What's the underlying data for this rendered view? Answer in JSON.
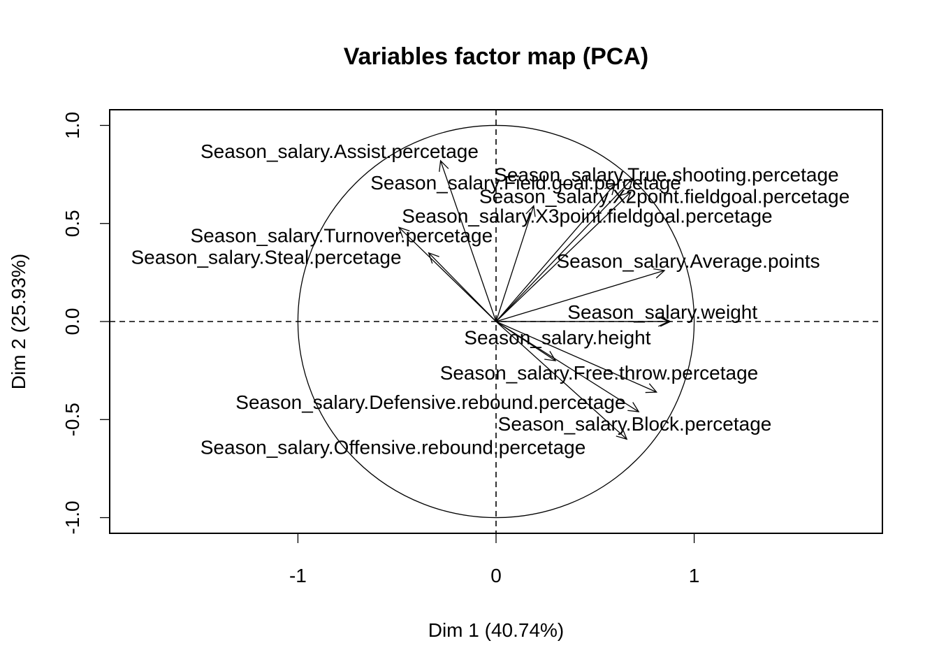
{
  "chart_data": {
    "type": "scatter",
    "title": "Variables factor map (PCA)",
    "xlabel": "Dim 1 (40.74%)",
    "ylabel": "Dim 2 (25.93%)",
    "xlim": [
      -1.95,
      1.95
    ],
    "ylim": [
      -1.08,
      1.08
    ],
    "x_ticks": [
      -1,
      0,
      1
    ],
    "x_tick_labels": [
      "-1",
      "0",
      "1"
    ],
    "y_ticks": [
      -1.0,
      -0.5,
      0.0,
      0.5,
      1.0
    ],
    "y_tick_labels": [
      "-1.0",
      "-0.5",
      "0.0",
      "0.5",
      "1.0"
    ],
    "grid": false,
    "correlation_circle": true,
    "reference_lines": "dashed at x=0 and y=0",
    "variables": [
      {
        "label": "Season_salary.Assist.percetage",
        "x": -0.28,
        "y": 0.82,
        "label_x": -0.79,
        "label_y": 0.87
      },
      {
        "label": "Season_salary.Field.goal.percetage",
        "x": 0.6,
        "y": 0.7,
        "label_x": 0.15,
        "label_y": 0.71
      },
      {
        "label": "Season_salary.True.shooting.percetage",
        "x": 0.69,
        "y": 0.73,
        "label_x": 0.86,
        "label_y": 0.75
      },
      {
        "label": "Season_salary.X2point.fieldgoal.percetage",
        "x": 0.68,
        "y": 0.66,
        "label_x": 0.85,
        "label_y": 0.64
      },
      {
        "label": "Season_salary.X3point.fieldgoal.percetage",
        "x": 0.19,
        "y": 0.59,
        "label_x": 0.46,
        "label_y": 0.54
      },
      {
        "label": "Season_salary.Turnover.percetage",
        "x": -0.49,
        "y": 0.48,
        "label_x": -0.78,
        "label_y": 0.44
      },
      {
        "label": "Season_salary.Steal.percetage",
        "x": -0.34,
        "y": 0.35,
        "label_x": -1.16,
        "label_y": 0.33
      },
      {
        "label": "Season_salary.Average.points",
        "x": 0.85,
        "y": 0.26,
        "label_x": 0.97,
        "label_y": 0.31
      },
      {
        "label": "Season_salary.weight",
        "x": 0.88,
        "y": 0.0,
        "label_x": 0.84,
        "label_y": 0.05
      },
      {
        "label": "Season_salary.height",
        "x": 0.87,
        "y": 0.0,
        "label_x": 0.31,
        "label_y": -0.08
      },
      {
        "label": "Season_salary.Free.throw.percetage",
        "x": 0.3,
        "y": -0.2,
        "label_x": 0.52,
        "label_y": -0.26
      },
      {
        "label": "Season_salary.Defensive.rebound.percetage",
        "x": 0.81,
        "y": -0.36,
        "label_x": -0.33,
        "label_y": -0.41
      },
      {
        "label": "Season_salary.Block.percetage",
        "x": 0.72,
        "y": -0.46,
        "label_x": 0.7,
        "label_y": -0.52
      },
      {
        "label": "Season_salary.Offensive.rebound.percetage",
        "x": 0.66,
        "y": -0.6,
        "label_x": -0.52,
        "label_y": -0.64
      }
    ]
  }
}
